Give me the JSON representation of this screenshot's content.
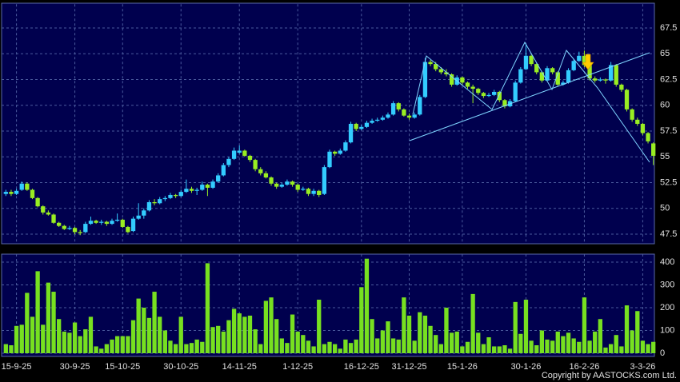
{
  "chart_data": [
    {
      "type": "candlestick",
      "up_color": "#33ccff",
      "down_color": "#99ee22",
      "grid": true,
      "ylim": [
        46.6,
        69.8
      ],
      "yticks": [
        47.5,
        50,
        52.5,
        55,
        57.5,
        60,
        62.5,
        65,
        67.5
      ],
      "ohlc": [
        [
          51.4,
          51.8,
          51.2,
          51.6
        ],
        [
          51.6,
          51.8,
          51.2,
          51.4
        ],
        [
          51.4,
          51.9,
          51.3,
          51.7
        ],
        [
          51.8,
          52.6,
          51.7,
          52.4
        ],
        [
          52.4,
          52.5,
          51.7,
          51.8
        ],
        [
          51.8,
          51.9,
          50.9,
          51.0
        ],
        [
          51.0,
          51.1,
          50.1,
          50.2
        ],
        [
          50.2,
          50.3,
          49.4,
          49.6
        ],
        [
          49.6,
          49.8,
          49.3,
          49.4
        ],
        [
          49.4,
          49.5,
          48.5,
          48.6
        ],
        [
          48.6,
          48.7,
          48.2,
          48.3
        ],
        [
          48.3,
          48.4,
          47.9,
          48.0
        ],
        [
          48.0,
          48.3,
          47.9,
          48.1
        ],
        [
          48.1,
          48.2,
          47.5,
          47.7
        ],
        [
          47.7,
          47.9,
          47.4,
          47.6
        ],
        [
          47.7,
          48.7,
          47.6,
          48.5
        ],
        [
          48.5,
          49.2,
          48.4,
          48.8
        ],
        [
          48.8,
          48.9,
          48.5,
          48.6
        ],
        [
          48.6,
          48.9,
          48.4,
          48.7
        ],
        [
          48.7,
          48.8,
          48.3,
          48.5
        ],
        [
          48.5,
          49.0,
          48.4,
          48.8
        ],
        [
          48.8,
          49.5,
          48.7,
          48.9
        ],
        [
          48.9,
          49.0,
          48.1,
          48.2
        ],
        [
          48.2,
          48.3,
          47.6,
          47.7
        ],
        [
          47.8,
          49.2,
          47.7,
          49.0
        ],
        [
          49.0,
          50.5,
          48.9,
          49.3
        ],
        [
          49.3,
          50.0,
          49.0,
          49.8
        ],
        [
          49.8,
          50.8,
          49.7,
          50.6
        ],
        [
          50.6,
          50.9,
          50.3,
          50.5
        ],
        [
          50.5,
          51.1,
          50.4,
          50.9
        ],
        [
          50.9,
          51.2,
          50.7,
          51.0
        ],
        [
          51.0,
          51.5,
          50.9,
          51.3
        ],
        [
          51.3,
          51.4,
          51.0,
          51.2
        ],
        [
          51.2,
          51.8,
          51.1,
          51.6
        ],
        [
          51.6,
          52.8,
          51.5,
          51.9
        ],
        [
          51.9,
          52.1,
          51.5,
          51.7
        ],
        [
          51.7,
          52.0,
          51.3,
          51.8
        ],
        [
          51.8,
          52.6,
          51.7,
          52.3
        ],
        [
          52.3,
          52.4,
          51.2,
          52.0
        ],
        [
          52.0,
          52.8,
          51.9,
          52.6
        ],
        [
          52.6,
          53.4,
          52.5,
          53.2
        ],
        [
          53.2,
          54.4,
          53.1,
          54.2
        ],
        [
          54.2,
          55.0,
          54.0,
          54.8
        ],
        [
          54.8,
          55.9,
          54.7,
          55.6
        ],
        [
          55.4,
          56.1,
          55.3,
          55.6
        ],
        [
          55.6,
          55.7,
          55.0,
          55.1
        ],
        [
          55.1,
          55.2,
          54.5,
          54.7
        ],
        [
          54.7,
          54.8,
          53.6,
          53.8
        ],
        [
          53.8,
          54.0,
          53.2,
          53.4
        ],
        [
          53.4,
          53.6,
          52.9,
          53.0
        ],
        [
          53.0,
          53.1,
          52.2,
          52.4
        ],
        [
          52.4,
          52.5,
          51.9,
          52.1
        ],
        [
          52.1,
          52.5,
          52.0,
          52.3
        ],
        [
          52.3,
          52.8,
          52.2,
          52.6
        ],
        [
          52.6,
          52.7,
          52.1,
          52.3
        ],
        [
          52.3,
          52.4,
          51.6,
          51.8
        ],
        [
          51.8,
          52.1,
          51.7,
          51.9
        ],
        [
          51.9,
          52.0,
          51.2,
          51.4
        ],
        [
          51.4,
          51.9,
          51.2,
          51.7
        ],
        [
          51.7,
          51.8,
          51.1,
          51.3
        ],
        [
          51.4,
          54.2,
          51.3,
          54.0
        ],
        [
          54.0,
          55.7,
          53.9,
          55.5
        ],
        [
          55.5,
          55.6,
          55.1,
          55.3
        ],
        [
          55.3,
          55.8,
          55.2,
          55.6
        ],
        [
          55.6,
          56.6,
          55.5,
          56.4
        ],
        [
          56.4,
          58.4,
          56.3,
          58.2
        ],
        [
          58.2,
          58.3,
          57.5,
          57.7
        ],
        [
          57.7,
          58.1,
          57.6,
          57.9
        ],
        [
          57.9,
          58.5,
          57.8,
          58.3
        ],
        [
          58.3,
          58.7,
          58.2,
          58.5
        ],
        [
          58.5,
          58.8,
          58.4,
          58.6
        ],
        [
          58.6,
          59.0,
          58.5,
          58.8
        ],
        [
          58.8,
          59.3,
          58.7,
          59.1
        ],
        [
          59.1,
          60.4,
          59.0,
          60.2
        ],
        [
          60.2,
          60.3,
          59.4,
          59.6
        ],
        [
          59.6,
          59.7,
          58.9,
          59.0
        ],
        [
          59.0,
          59.2,
          58.6,
          58.8
        ],
        [
          58.8,
          59.3,
          58.7,
          59.1
        ],
        [
          59.1,
          61.0,
          59.0,
          60.8
        ],
        [
          60.8,
          64.6,
          60.7,
          64.2
        ],
        [
          64.2,
          64.4,
          63.8,
          64.0
        ],
        [
          64.0,
          64.2,
          63.3,
          63.5
        ],
        [
          63.5,
          63.7,
          63.0,
          63.2
        ],
        [
          63.2,
          63.5,
          62.8,
          63.0
        ],
        [
          63.0,
          63.1,
          61.8,
          62.0
        ],
        [
          62.0,
          62.9,
          61.9,
          62.7
        ],
        [
          62.7,
          62.8,
          62.0,
          62.2
        ],
        [
          62.2,
          62.3,
          61.6,
          61.8
        ],
        [
          61.8,
          62.0,
          60.2,
          61.6
        ],
        [
          61.6,
          61.7,
          61.0,
          61.2
        ],
        [
          61.2,
          61.3,
          60.7,
          60.9
        ],
        [
          60.9,
          61.2,
          60.8,
          61.0
        ],
        [
          61.0,
          61.5,
          60.9,
          61.3
        ],
        [
          61.3,
          61.4,
          60.3,
          60.5
        ],
        [
          60.5,
          60.6,
          59.7,
          59.9
        ],
        [
          59.9,
          60.6,
          59.8,
          60.4
        ],
        [
          60.4,
          62.4,
          60.3,
          62.2
        ],
        [
          62.2,
          63.7,
          62.1,
          63.5
        ],
        [
          63.5,
          66.0,
          63.4,
          64.8
        ],
        [
          64.8,
          64.9,
          63.8,
          64.0
        ],
        [
          64.0,
          64.1,
          63.0,
          63.2
        ],
        [
          63.2,
          63.3,
          62.2,
          62.4
        ],
        [
          62.4,
          63.8,
          62.3,
          63.6
        ],
        [
          63.6,
          63.7,
          63.0,
          63.2
        ],
        [
          63.2,
          63.3,
          61.8,
          62.0
        ],
        [
          62.0,
          62.4,
          61.9,
          62.2
        ],
        [
          62.2,
          63.6,
          62.1,
          63.4
        ],
        [
          63.4,
          64.5,
          63.3,
          64.3
        ],
        [
          64.3,
          65.2,
          64.2,
          64.8
        ],
        [
          64.8,
          65.3,
          63.7,
          63.9
        ],
        [
          63.9,
          64.0,
          62.4,
          62.6
        ],
        [
          62.6,
          62.8,
          62.2,
          62.4
        ],
        [
          62.4,
          62.7,
          62.3,
          62.5
        ],
        [
          62.5,
          62.6,
          62.1,
          62.4
        ],
        [
          62.4,
          64.2,
          62.3,
          63.9
        ],
        [
          63.9,
          64.0,
          61.8,
          62.0
        ],
        [
          62.0,
          62.1,
          61.3,
          61.5
        ],
        [
          61.5,
          61.6,
          59.4,
          59.6
        ],
        [
          59.6,
          59.7,
          58.4,
          58.6
        ],
        [
          58.6,
          58.8,
          58.0,
          58.2
        ],
        [
          58.2,
          58.3,
          57.1,
          57.3
        ],
        [
          57.3,
          57.4,
          56.3,
          56.5
        ],
        [
          56.3,
          56.4,
          54.2,
          55.1
        ]
      ]
    },
    {
      "type": "bar",
      "color": "#77e020",
      "grid": true,
      "ylim": [
        0,
        435
      ],
      "yticks": [
        0,
        100,
        200,
        300,
        400
      ],
      "categories": [
        null,
        null,
        "15-9-25",
        null,
        null,
        null,
        null,
        null,
        null,
        null,
        null,
        null,
        null,
        "30-9-25",
        null,
        null,
        null,
        null,
        null,
        null,
        null,
        null,
        "15-10-25",
        null,
        null,
        null,
        null,
        null,
        null,
        null,
        null,
        null,
        null,
        "30-10-25",
        null,
        null,
        null,
        null,
        null,
        null,
        null,
        null,
        null,
        null,
        "14-11-25",
        null,
        null,
        null,
        null,
        null,
        null,
        null,
        null,
        null,
        null,
        "1-12-25",
        null,
        null,
        null,
        null,
        null,
        null,
        null,
        null,
        null,
        null,
        null,
        "16-12-25",
        null,
        null,
        null,
        null,
        null,
        null,
        null,
        null,
        "31-12-25",
        null,
        null,
        null,
        null,
        null,
        null,
        null,
        null,
        null,
        "15-1-26",
        null,
        null,
        null,
        null,
        null,
        null,
        null,
        null,
        null,
        null,
        null,
        "30-1-26",
        null,
        null,
        null,
        null,
        null,
        null,
        null,
        null,
        null,
        null,
        "16-2-26",
        null,
        null,
        null,
        null,
        null,
        null,
        null,
        null,
        null,
        null,
        "3-3-26",
        null,
        null
      ],
      "values": [
        40,
        35,
        120,
        125,
        265,
        160,
        360,
        125,
        310,
        270,
        150,
        95,
        90,
        135,
        75,
        105,
        160,
        30,
        20,
        40,
        60,
        75,
        75,
        75,
        145,
        240,
        200,
        155,
        270,
        160,
        100,
        55,
        40,
        160,
        40,
        45,
        60,
        50,
        395,
        115,
        120,
        95,
        145,
        195,
        175,
        160,
        165,
        105,
        40,
        230,
        245,
        150,
        65,
        45,
        170,
        95,
        80,
        55,
        30,
        235,
        40,
        50,
        40,
        20,
        60,
        45,
        60,
        290,
        415,
        150,
        65,
        100,
        140,
        65,
        60,
        245,
        165,
        55,
        180,
        165,
        120,
        80,
        40,
        200,
        90,
        95,
        30,
        50,
        260,
        90,
        40,
        70,
        30,
        30,
        35,
        20,
        225,
        85,
        235,
        55,
        35,
        100,
        60,
        55,
        95,
        75,
        90,
        65,
        50,
        245,
        55,
        95,
        150,
        25,
        40,
        80,
        30,
        210,
        100,
        185,
        55,
        40,
        50
      ]
    },
    {
      "type": "text",
      "text": "Copyright by AASTOCKS.com Ltd."
    }
  ]
}
